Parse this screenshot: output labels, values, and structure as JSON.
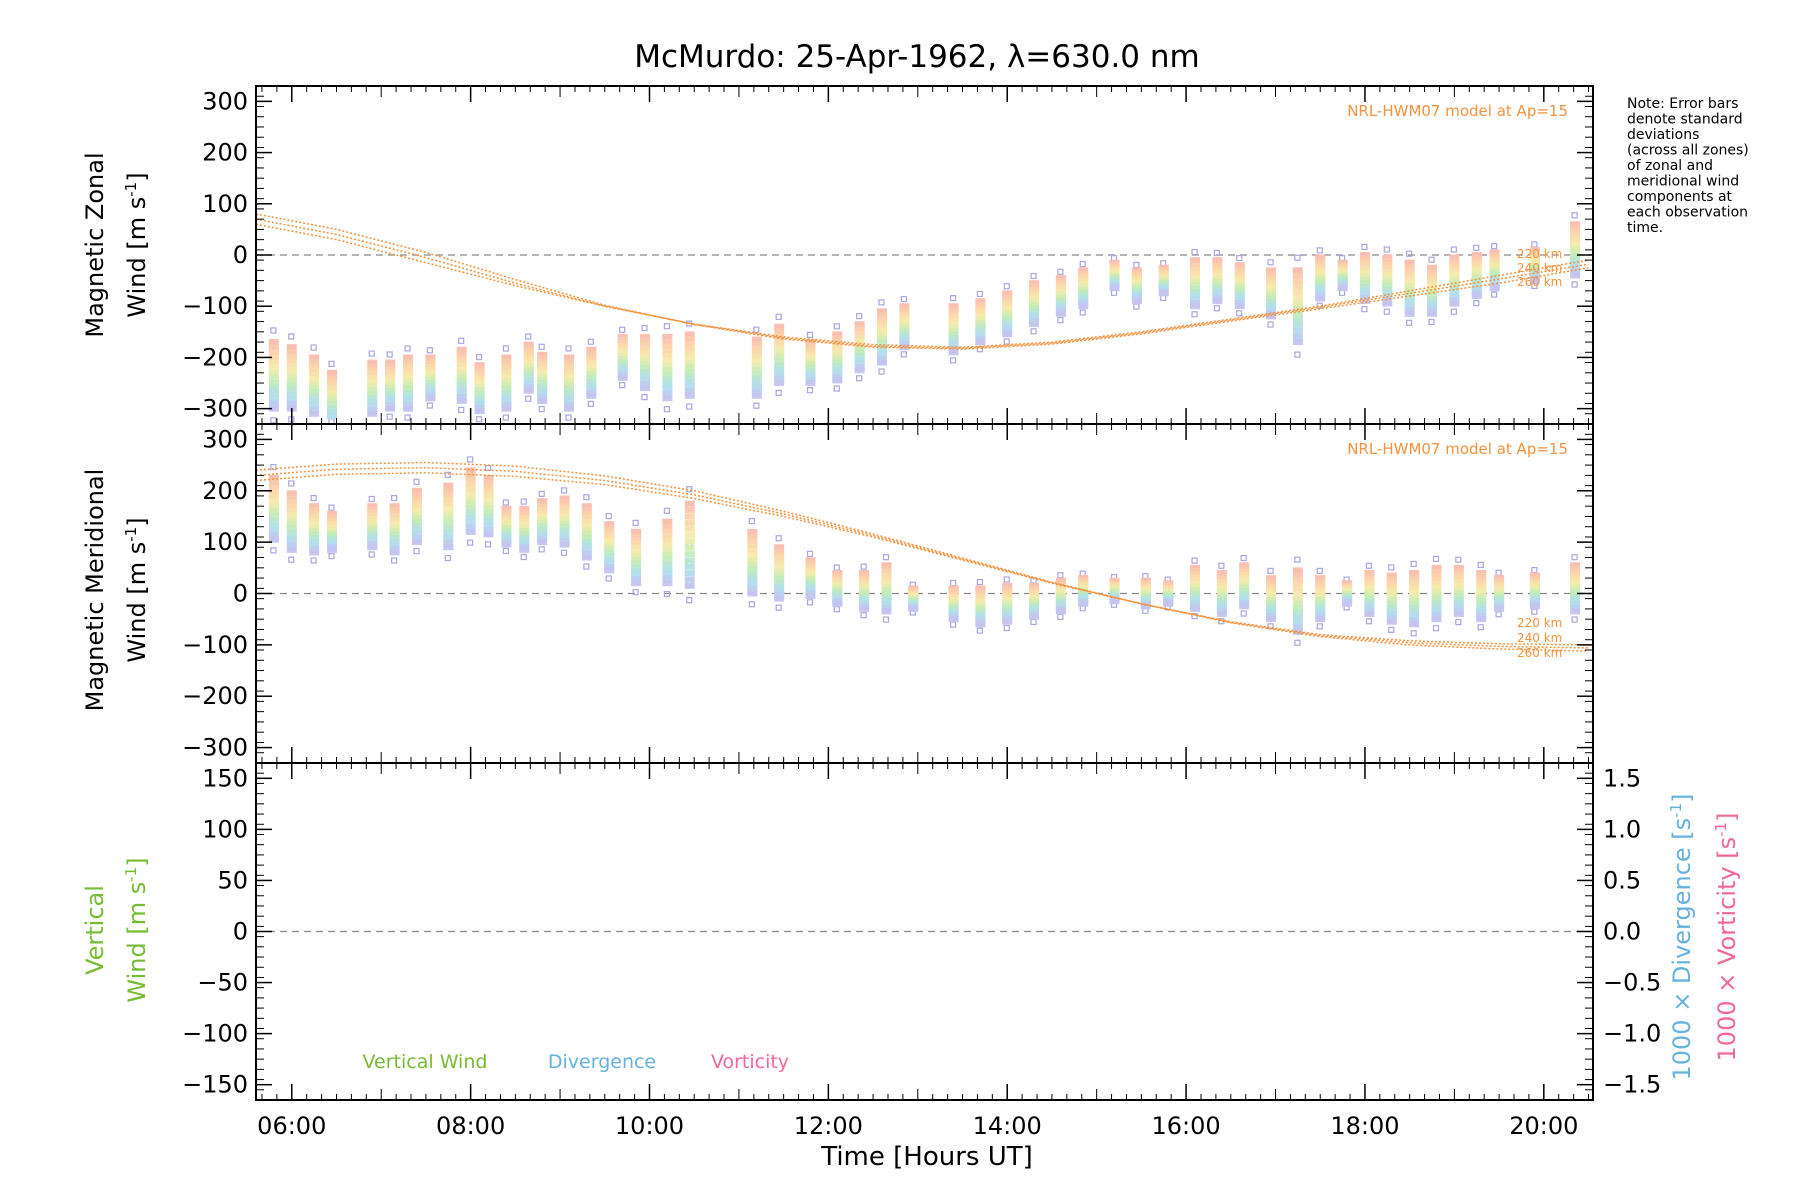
{
  "title": "McMurdo: 25-Apr-1962, λ=630.0 nm",
  "note_lines": [
    "Note: Error bars",
    "denote standard",
    "deviations",
    "(across all zones)",
    "of zonal and",
    "meridional wind",
    "components at",
    "each observation",
    "time."
  ],
  "model_label": "NRL-HWM07 model at Ap=15",
  "altitude_labels": [
    "220 km",
    "240 km",
    "260 km"
  ],
  "x_axis_title": "Time [Hours UT]",
  "x_tick_labels": [
    "06:00",
    "08:00",
    "10:00",
    "12:00",
    "14:00",
    "16:00",
    "18:00",
    "20:00"
  ],
  "colors": {
    "model": "#f5923e",
    "vertical": "#77bb33",
    "divergence": "#66b2dd",
    "vorticity": "#f2679a",
    "error_bar": "#a9a6e0",
    "zero_line": "#888888"
  },
  "panels": {
    "zonal": {
      "ytitle_line1": "Magnetic Zonal",
      "ytitle_line2": "Wind [m s",
      "ytitle_sup": "-1",
      "ytitle_close": "]",
      "y_tick_labels": [
        "300",
        "200",
        "100",
        "0",
        "−100",
        "−200",
        "−300"
      ]
    },
    "meridional": {
      "ytitle_line1": "Magnetic Meridional",
      "ytitle_line2": "Wind [m s",
      "ytitle_sup": "-1",
      "ytitle_close": "]",
      "y_tick_labels": [
        "300",
        "200",
        "100",
        "0",
        "−100",
        "−200",
        "−300"
      ]
    },
    "vertical": {
      "ytitle_line1": "Vertical",
      "ytitle_line2": "Wind [m s",
      "ytitle_sup": "-1",
      "ytitle_close": "]",
      "y_tick_labels": [
        "150",
        "100",
        "50",
        "0",
        "−50",
        "−100",
        "−150"
      ],
      "right_tick_labels": [
        "1.5",
        "1.0",
        "0.5",
        "0.0",
        "−0.5",
        "−1.0",
        "−1.5"
      ],
      "right_title1": "1000 × Divergence [s",
      "right_title2": "1000 × Vorticity [s",
      "right_sup": "-1",
      "right_close": "]",
      "legend": [
        "Vertical Wind",
        "Divergence",
        "Vorticity"
      ]
    }
  },
  "chart_data": [
    {
      "type": "scatter",
      "panel": "zonal",
      "title": "McMurdo: 25-Apr-1962, λ=630.0 nm",
      "xlabel": "",
      "ylabel": "Magnetic Zonal Wind [m s-1]",
      "x_unit": "hours UT",
      "xlim": [
        5.6,
        20.55
      ],
      "ylim": [
        -330,
        330
      ],
      "zero_line": true,
      "observations": [
        {
          "x": 5.8,
          "y": -235,
          "spread": 65
        },
        {
          "x": 6.0,
          "y": -240,
          "spread": 60
        },
        {
          "x": 6.25,
          "y": -255,
          "spread": 55
        },
        {
          "x": 6.45,
          "y": -280,
          "spread": 50
        },
        {
          "x": 6.9,
          "y": -260,
          "spread": 50
        },
        {
          "x": 7.1,
          "y": -255,
          "spread": 45
        },
        {
          "x": 7.3,
          "y": -250,
          "spread": 50
        },
        {
          "x": 7.55,
          "y": -240,
          "spread": 40
        },
        {
          "x": 7.9,
          "y": -235,
          "spread": 50
        },
        {
          "x": 8.1,
          "y": -260,
          "spread": 45
        },
        {
          "x": 8.4,
          "y": -250,
          "spread": 50
        },
        {
          "x": 8.65,
          "y": -220,
          "spread": 45
        },
        {
          "x": 8.8,
          "y": -240,
          "spread": 45
        },
        {
          "x": 9.1,
          "y": -250,
          "spread": 50
        },
        {
          "x": 9.35,
          "y": -230,
          "spread": 45
        },
        {
          "x": 9.7,
          "y": -200,
          "spread": 40
        },
        {
          "x": 9.95,
          "y": -210,
          "spread": 50
        },
        {
          "x": 10.2,
          "y": -220,
          "spread": 60
        },
        {
          "x": 10.45,
          "y": -215,
          "spread": 60
        },
        {
          "x": 11.2,
          "y": -220,
          "spread": 55
        },
        {
          "x": 11.45,
          "y": -195,
          "spread": 55
        },
        {
          "x": 11.8,
          "y": -210,
          "spread": 40
        },
        {
          "x": 12.1,
          "y": -200,
          "spread": 45
        },
        {
          "x": 12.35,
          "y": -180,
          "spread": 45
        },
        {
          "x": 12.6,
          "y": -160,
          "spread": 50
        },
        {
          "x": 12.85,
          "y": -140,
          "spread": 40
        },
        {
          "x": 13.4,
          "y": -145,
          "spread": 45
        },
        {
          "x": 13.7,
          "y": -130,
          "spread": 40
        },
        {
          "x": 14.0,
          "y": -115,
          "spread": 40
        },
        {
          "x": 14.3,
          "y": -95,
          "spread": 40
        },
        {
          "x": 14.6,
          "y": -80,
          "spread": 35
        },
        {
          "x": 14.85,
          "y": -65,
          "spread": 35
        },
        {
          "x": 15.2,
          "y": -40,
          "spread": 25
        },
        {
          "x": 15.45,
          "y": -60,
          "spread": 30
        },
        {
          "x": 15.75,
          "y": -50,
          "spread": 25
        },
        {
          "x": 16.1,
          "y": -55,
          "spread": 45
        },
        {
          "x": 16.35,
          "y": -50,
          "spread": 40
        },
        {
          "x": 16.6,
          "y": -60,
          "spread": 40
        },
        {
          "x": 16.95,
          "y": -75,
          "spread": 45
        },
        {
          "x": 17.25,
          "y": -100,
          "spread": 70
        },
        {
          "x": 17.5,
          "y": -45,
          "spread": 40
        },
        {
          "x": 17.75,
          "y": -40,
          "spread": 25
        },
        {
          "x": 18.0,
          "y": -45,
          "spread": 45
        },
        {
          "x": 18.25,
          "y": -50,
          "spread": 45
        },
        {
          "x": 18.5,
          "y": -65,
          "spread": 50
        },
        {
          "x": 18.75,
          "y": -70,
          "spread": 45
        },
        {
          "x": 19.0,
          "y": -50,
          "spread": 45
        },
        {
          "x": 19.25,
          "y": -40,
          "spread": 40
        },
        {
          "x": 19.45,
          "y": -30,
          "spread": 35
        },
        {
          "x": 19.9,
          "y": -20,
          "spread": 30
        },
        {
          "x": 20.35,
          "y": 10,
          "spread": 50
        }
      ],
      "model_series": [
        {
          "name": "220 km",
          "x": [
            5.6,
            6.5,
            7.5,
            8.5,
            9.5,
            10.5,
            11.5,
            12.5,
            13.5,
            14.5,
            15.5,
            16.5,
            17.5,
            18.5,
            19.5,
            20.5
          ],
          "values": [
            60,
            30,
            -15,
            -60,
            -100,
            -135,
            -160,
            -175,
            -180,
            -170,
            -150,
            -125,
            -100,
            -70,
            -40,
            -10
          ]
        },
        {
          "name": "240 km",
          "x": [
            5.6,
            6.5,
            7.5,
            8.5,
            9.5,
            10.5,
            11.5,
            12.5,
            13.5,
            14.5,
            15.5,
            16.5,
            17.5,
            18.5,
            19.5,
            20.5
          ],
          "values": [
            70,
            40,
            -5,
            -55,
            -100,
            -135,
            -162,
            -178,
            -182,
            -172,
            -152,
            -127,
            -102,
            -75,
            -47,
            -18
          ]
        },
        {
          "name": "260 km",
          "x": [
            5.6,
            6.5,
            7.5,
            8.5,
            9.5,
            10.5,
            11.5,
            12.5,
            13.5,
            14.5,
            15.5,
            16.5,
            17.5,
            18.5,
            19.5,
            20.5
          ],
          "values": [
            80,
            50,
            5,
            -48,
            -98,
            -136,
            -164,
            -180,
            -184,
            -174,
            -154,
            -129,
            -105,
            -80,
            -55,
            -25
          ]
        }
      ]
    },
    {
      "type": "scatter",
      "panel": "meridional",
      "xlabel": "",
      "ylabel": "Magnetic Meridional Wind [m s-1]",
      "x_unit": "hours UT",
      "xlim": [
        5.6,
        20.55
      ],
      "ylim": [
        -330,
        330
      ],
      "zero_line": true,
      "observations": [
        {
          "x": 5.8,
          "y": 165,
          "spread": 60
        },
        {
          "x": 6.0,
          "y": 140,
          "spread": 55
        },
        {
          "x": 6.25,
          "y": 125,
          "spread": 45
        },
        {
          "x": 6.45,
          "y": 120,
          "spread": 35
        },
        {
          "x": 6.9,
          "y": 130,
          "spread": 40
        },
        {
          "x": 7.15,
          "y": 125,
          "spread": 45
        },
        {
          "x": 7.4,
          "y": 150,
          "spread": 50
        },
        {
          "x": 7.75,
          "y": 150,
          "spread": 60
        },
        {
          "x": 8.0,
          "y": 180,
          "spread": 60
        },
        {
          "x": 8.2,
          "y": 170,
          "spread": 55
        },
        {
          "x": 8.4,
          "y": 130,
          "spread": 35
        },
        {
          "x": 8.6,
          "y": 125,
          "spread": 40
        },
        {
          "x": 8.8,
          "y": 140,
          "spread": 40
        },
        {
          "x": 9.05,
          "y": 140,
          "spread": 45
        },
        {
          "x": 9.3,
          "y": 120,
          "spread": 50
        },
        {
          "x": 9.55,
          "y": 90,
          "spread": 45
        },
        {
          "x": 9.85,
          "y": 70,
          "spread": 50
        },
        {
          "x": 10.2,
          "y": 80,
          "spread": 60
        },
        {
          "x": 10.45,
          "y": 95,
          "spread": 80
        },
        {
          "x": 11.15,
          "y": 60,
          "spread": 60
        },
        {
          "x": 11.45,
          "y": 40,
          "spread": 50
        },
        {
          "x": 11.8,
          "y": 30,
          "spread": 35
        },
        {
          "x": 12.1,
          "y": 10,
          "spread": 30
        },
        {
          "x": 12.4,
          "y": 5,
          "spread": 35
        },
        {
          "x": 12.65,
          "y": 10,
          "spread": 45
        },
        {
          "x": 12.95,
          "y": -10,
          "spread": 20
        },
        {
          "x": 13.4,
          "y": -20,
          "spread": 30
        },
        {
          "x": 13.7,
          "y": -25,
          "spread": 35
        },
        {
          "x": 14.0,
          "y": -20,
          "spread": 35
        },
        {
          "x": 14.3,
          "y": -15,
          "spread": 30
        },
        {
          "x": 14.6,
          "y": -5,
          "spread": 30
        },
        {
          "x": 14.85,
          "y": 5,
          "spread": 25
        },
        {
          "x": 15.2,
          "y": 5,
          "spread": 20
        },
        {
          "x": 15.55,
          "y": 0,
          "spread": 25
        },
        {
          "x": 15.8,
          "y": 0,
          "spread": 20
        },
        {
          "x": 16.1,
          "y": 10,
          "spread": 40
        },
        {
          "x": 16.4,
          "y": 0,
          "spread": 40
        },
        {
          "x": 16.65,
          "y": 15,
          "spread": 40
        },
        {
          "x": 16.95,
          "y": -10,
          "spread": 40
        },
        {
          "x": 17.25,
          "y": -15,
          "spread": 60
        },
        {
          "x": 17.5,
          "y": -10,
          "spread": 40
        },
        {
          "x": 17.8,
          "y": 0,
          "spread": 20
        },
        {
          "x": 18.05,
          "y": 0,
          "spread": 40
        },
        {
          "x": 18.3,
          "y": -10,
          "spread": 45
        },
        {
          "x": 18.55,
          "y": -10,
          "spread": 50
        },
        {
          "x": 18.8,
          "y": 0,
          "spread": 50
        },
        {
          "x": 19.05,
          "y": 5,
          "spread": 45
        },
        {
          "x": 19.3,
          "y": -5,
          "spread": 45
        },
        {
          "x": 19.5,
          "y": 0,
          "spread": 30
        },
        {
          "x": 19.9,
          "y": 5,
          "spread": 30
        },
        {
          "x": 20.35,
          "y": 10,
          "spread": 45
        }
      ],
      "model_series": [
        {
          "name": "220 km",
          "x": [
            5.6,
            6.5,
            7.5,
            8.5,
            9.5,
            10.5,
            11.5,
            12.5,
            13.5,
            14.5,
            15.5,
            16.5,
            17.5,
            18.5,
            19.5,
            20.5
          ],
          "values": [
            220,
            232,
            235,
            228,
            212,
            185,
            150,
            110,
            65,
            20,
            -20,
            -55,
            -80,
            -92,
            -98,
            -100
          ]
        },
        {
          "name": "240 km",
          "x": [
            5.6,
            6.5,
            7.5,
            8.5,
            9.5,
            10.5,
            11.5,
            12.5,
            13.5,
            14.5,
            15.5,
            16.5,
            17.5,
            18.5,
            19.5,
            20.5
          ],
          "values": [
            230,
            242,
            245,
            238,
            220,
            192,
            155,
            113,
            67,
            21,
            -20,
            -56,
            -82,
            -96,
            -103,
            -106
          ]
        },
        {
          "name": "260 km",
          "x": [
            5.6,
            6.5,
            7.5,
            8.5,
            9.5,
            10.5,
            11.5,
            12.5,
            13.5,
            14.5,
            15.5,
            16.5,
            17.5,
            18.5,
            19.5,
            20.5
          ],
          "values": [
            240,
            252,
            255,
            248,
            229,
            200,
            160,
            116,
            69,
            22,
            -20,
            -57,
            -84,
            -100,
            -108,
            -112
          ]
        }
      ]
    },
    {
      "type": "line",
      "panel": "vertical",
      "xlabel": "Time [Hours UT]",
      "ylabel": "Vertical Wind [m s-1]",
      "y2label": "1000 × Divergence [s-1] / 1000 × Vorticity [s-1]",
      "xlim": [
        5.6,
        20.55
      ],
      "ylim": [
        -165,
        165
      ],
      "y2lim": [
        -1.65,
        1.65
      ],
      "zero_line": true,
      "series": [
        {
          "name": "Vertical Wind",
          "values": []
        },
        {
          "name": "Divergence",
          "values": []
        },
        {
          "name": "Vorticity",
          "values": []
        }
      ]
    }
  ]
}
